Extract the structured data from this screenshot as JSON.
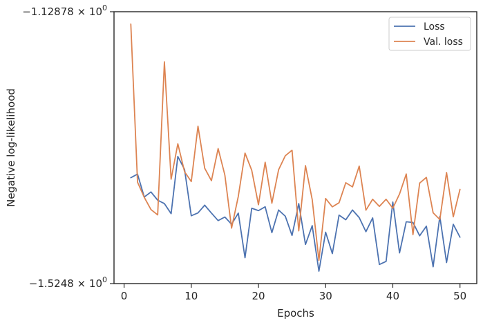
{
  "chart_data": {
    "type": "line",
    "title": "",
    "xlabel": "Epochs",
    "ylabel": "Negative log-likelihood",
    "xlim": [
      -1.5,
      52.5
    ],
    "xticks": [
      0,
      10,
      20,
      30,
      40,
      50
    ],
    "xtick_labels": [
      "0",
      "10",
      "20",
      "30",
      "40",
      "50"
    ],
    "ylim": [
      -1.5248,
      -1.12878
    ],
    "yscale": "symlog",
    "yticks": [
      -1.12878,
      -1.5248
    ],
    "ytick_labels": [
      {
        "base": "−1.12878",
        "pow": "10",
        "exp": "0"
      },
      {
        "base": "−1.5248",
        "pow": "10",
        "exp": "0"
      }
    ],
    "grid": false,
    "legend_position": "top-right",
    "x": [
      1,
      2,
      3,
      4,
      5,
      6,
      7,
      8,
      9,
      10,
      11,
      12,
      13,
      14,
      15,
      16,
      17,
      18,
      19,
      20,
      21,
      22,
      23,
      24,
      25,
      26,
      27,
      28,
      29,
      30,
      31,
      32,
      33,
      34,
      35,
      36,
      37,
      38,
      39,
      40,
      41,
      42,
      43,
      44,
      45,
      46,
      47,
      48,
      49,
      50
    ],
    "series": [
      {
        "name": "Loss",
        "color": "#4c72b0",
        "values": [
          -1.3706,
          -1.3653,
          -1.3987,
          -1.3913,
          -1.4033,
          -1.4083,
          -1.4229,
          -1.3396,
          -1.3585,
          -1.426,
          -1.4218,
          -1.4106,
          -1.4221,
          -1.433,
          -1.4278,
          -1.4384,
          -1.4221,
          -1.4871,
          -1.415,
          -1.4185,
          -1.4129,
          -1.4506,
          -1.4176,
          -1.4267,
          -1.4546,
          -1.4083,
          -1.4678,
          -1.4404,
          -1.5067,
          -1.4499,
          -1.4811,
          -1.425,
          -1.4318,
          -1.4176,
          -1.4287,
          -1.4492,
          -1.4291,
          -1.497,
          -1.4925,
          -1.406,
          -1.4801,
          -1.4347,
          -1.4358,
          -1.4551,
          -1.4411,
          -1.5003,
          -1.427,
          -1.4941,
          -1.4384,
          -1.4572
        ]
      },
      {
        "name": "Val. loss",
        "color": "#dd8452",
        "values": [
          -1.1468,
          -1.3771,
          -1.3991,
          -1.4169,
          -1.4247,
          -1.2018,
          -1.3727,
          -1.3211,
          -1.3618,
          -1.3762,
          -1.2955,
          -1.3568,
          -1.3748,
          -1.3281,
          -1.3667,
          -1.444,
          -1.3978,
          -1.3347,
          -1.3597,
          -1.4099,
          -1.348,
          -1.4077,
          -1.359,
          -1.3385,
          -1.3305,
          -1.448,
          -1.353,
          -1.4022,
          -1.491,
          -1.4009,
          -1.413,
          -1.407,
          -1.3779,
          -1.3839,
          -1.3536,
          -1.4178,
          -1.4019,
          -1.4124,
          -1.4019,
          -1.415,
          -1.3943,
          -1.3652,
          -1.4535,
          -1.3784,
          -1.3701,
          -1.4216,
          -1.4315,
          -1.363,
          -1.4274,
          -1.3876
        ]
      }
    ]
  }
}
